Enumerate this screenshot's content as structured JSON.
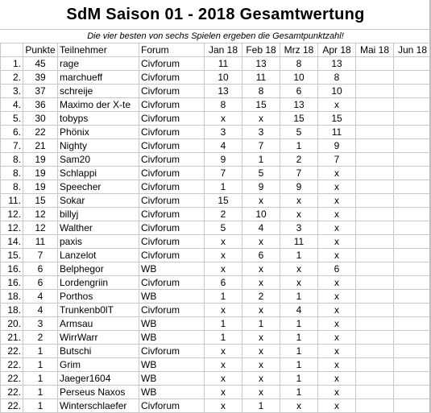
{
  "title": "SdM Saison 01 - 2018 Gesamtwertung",
  "subtitle": "Die vier besten von sechs Spielen ergeben die Gesamtpunktzahl!",
  "headers": {
    "rank": "",
    "points": "Punkte",
    "participant": "Teilnehmer",
    "forum": "Forum",
    "months": [
      "Jan 18",
      "Feb 18",
      "Mrz 18",
      "Apr 18",
      "Mai 18",
      "Jun 18"
    ]
  },
  "rows": [
    {
      "rank": "1.",
      "points": "45",
      "name": "rage",
      "forum": "Civforum",
      "scores": [
        "11",
        "13",
        "8",
        "13",
        "",
        ""
      ],
      "bold": [
        false,
        false,
        false,
        false,
        false,
        false
      ]
    },
    {
      "rank": "2.",
      "points": "39",
      "name": "marchueff",
      "forum": "Civforum",
      "scores": [
        "10",
        "11",
        "10",
        "8",
        "",
        ""
      ],
      "bold": [
        false,
        false,
        false,
        false,
        false,
        false
      ]
    },
    {
      "rank": "3.",
      "points": "37",
      "name": "schreije",
      "forum": "Civforum",
      "scores": [
        "13",
        "8",
        "6",
        "10",
        "",
        ""
      ],
      "bold": [
        false,
        false,
        false,
        false,
        false,
        false
      ]
    },
    {
      "rank": "4.",
      "points": "36",
      "name": "Maximo der X-te",
      "forum": "Civforum",
      "scores": [
        "8",
        "15",
        "13",
        "x",
        "",
        ""
      ],
      "bold": [
        false,
        true,
        false,
        false,
        false,
        false
      ]
    },
    {
      "rank": "5.",
      "points": "30",
      "name": "tobyps",
      "forum": "Civforum",
      "scores": [
        "x",
        "x",
        "15",
        "15",
        "",
        ""
      ],
      "bold": [
        false,
        false,
        true,
        true,
        false,
        false
      ]
    },
    {
      "rank": "6.",
      "points": "22",
      "name": "Phönix",
      "forum": "Civforum",
      "scores": [
        "3",
        "3",
        "5",
        "11",
        "",
        ""
      ],
      "bold": [
        false,
        false,
        false,
        false,
        false,
        false
      ]
    },
    {
      "rank": "7.",
      "points": "21",
      "name": "Nighty",
      "forum": "Civforum",
      "scores": [
        "4",
        "7",
        "1",
        "9",
        "",
        ""
      ],
      "bold": [
        false,
        false,
        false,
        false,
        false,
        false
      ]
    },
    {
      "rank": "8.",
      "points": "19",
      "name": "Sam20",
      "forum": "Civforum",
      "scores": [
        "9",
        "1",
        "2",
        "7",
        "",
        ""
      ],
      "bold": [
        false,
        false,
        false,
        false,
        false,
        false
      ]
    },
    {
      "rank": "8.",
      "points": "19",
      "name": "Schlappi",
      "forum": "Civforum",
      "scores": [
        "7",
        "5",
        "7",
        "x",
        "",
        ""
      ],
      "bold": [
        false,
        false,
        false,
        false,
        false,
        false
      ]
    },
    {
      "rank": "8.",
      "points": "19",
      "name": "Speecher",
      "forum": "Civforum",
      "scores": [
        "1",
        "9",
        "9",
        "x",
        "",
        ""
      ],
      "bold": [
        false,
        false,
        false,
        false,
        false,
        false
      ]
    },
    {
      "rank": "11.",
      "points": "15",
      "name": "Sokar",
      "forum": "Civforum",
      "scores": [
        "15",
        "x",
        "x",
        "x",
        "",
        ""
      ],
      "bold": [
        true,
        false,
        false,
        false,
        false,
        false
      ]
    },
    {
      "rank": "12.",
      "points": "12",
      "name": "billyj",
      "forum": "Civforum",
      "scores": [
        "2",
        "10",
        "x",
        "x",
        "",
        ""
      ],
      "bold": [
        false,
        false,
        false,
        false,
        false,
        false
      ]
    },
    {
      "rank": "12.",
      "points": "12",
      "name": "Walther",
      "forum": "Civforum",
      "scores": [
        "5",
        "4",
        "3",
        "x",
        "",
        ""
      ],
      "bold": [
        false,
        false,
        false,
        false,
        false,
        false
      ]
    },
    {
      "rank": "14.",
      "points": "11",
      "name": "paxis",
      "forum": "Civforum",
      "scores": [
        "x",
        "x",
        "11",
        "x",
        "",
        ""
      ],
      "bold": [
        false,
        false,
        false,
        false,
        false,
        false
      ]
    },
    {
      "rank": "15.",
      "points": "7",
      "name": "Lanzelot",
      "forum": "Civforum",
      "scores": [
        "x",
        "6",
        "1",
        "x",
        "",
        ""
      ],
      "bold": [
        false,
        false,
        false,
        false,
        false,
        false
      ]
    },
    {
      "rank": "16.",
      "points": "6",
      "name": "Belphegor",
      "forum": "WB",
      "scores": [
        "x",
        "x",
        "x",
        "6",
        "",
        ""
      ],
      "bold": [
        false,
        false,
        false,
        false,
        false,
        false
      ]
    },
    {
      "rank": "16.",
      "points": "6",
      "name": "Lordengriin",
      "forum": "Civforum",
      "scores": [
        "6",
        "x",
        "x",
        "x",
        "",
        ""
      ],
      "bold": [
        false,
        false,
        false,
        false,
        false,
        false
      ]
    },
    {
      "rank": "18.",
      "points": "4",
      "name": "Porthos",
      "forum": "WB",
      "scores": [
        "1",
        "2",
        "1",
        "x",
        "",
        ""
      ],
      "bold": [
        false,
        false,
        false,
        false,
        false,
        false
      ]
    },
    {
      "rank": "18.",
      "points": "4",
      "name": "Trunkenb0lT",
      "forum": "Civforum",
      "scores": [
        "x",
        "x",
        "4",
        "x",
        "",
        ""
      ],
      "bold": [
        false,
        false,
        false,
        false,
        false,
        false
      ]
    },
    {
      "rank": "20.",
      "points": "3",
      "name": "Armsau",
      "forum": "WB",
      "scores": [
        "1",
        "1",
        "1",
        "x",
        "",
        ""
      ],
      "bold": [
        false,
        false,
        false,
        false,
        false,
        false
      ]
    },
    {
      "rank": "21.",
      "points": "2",
      "name": "WirrWarr",
      "forum": "WB",
      "scores": [
        "1",
        "x",
        "1",
        "x",
        "",
        ""
      ],
      "bold": [
        false,
        false,
        false,
        false,
        false,
        false
      ]
    },
    {
      "rank": "22.",
      "points": "1",
      "name": "Butschi",
      "forum": "Civforum",
      "scores": [
        "x",
        "x",
        "1",
        "x",
        "",
        ""
      ],
      "bold": [
        false,
        false,
        false,
        false,
        false,
        false
      ]
    },
    {
      "rank": "22.",
      "points": "1",
      "name": "Grim",
      "forum": "WB",
      "scores": [
        "x",
        "x",
        "1",
        "x",
        "",
        ""
      ],
      "bold": [
        false,
        false,
        false,
        false,
        false,
        false
      ]
    },
    {
      "rank": "22.",
      "points": "1",
      "name": "Jaeger1604",
      "forum": "WB",
      "scores": [
        "x",
        "x",
        "1",
        "x",
        "",
        ""
      ],
      "bold": [
        false,
        false,
        false,
        false,
        false,
        false
      ]
    },
    {
      "rank": "22.",
      "points": "1",
      "name": "Perseus Naxos",
      "forum": "WB",
      "scores": [
        "x",
        "x",
        "1",
        "x",
        "",
        ""
      ],
      "bold": [
        false,
        false,
        false,
        false,
        false,
        false
      ]
    },
    {
      "rank": "22.",
      "points": "1",
      "name": "Winterschlaefer",
      "forum": "Civforum",
      "scores": [
        "x",
        "1",
        "x",
        "x",
        "",
        ""
      ],
      "bold": [
        false,
        false,
        false,
        false,
        false,
        false
      ]
    }
  ]
}
